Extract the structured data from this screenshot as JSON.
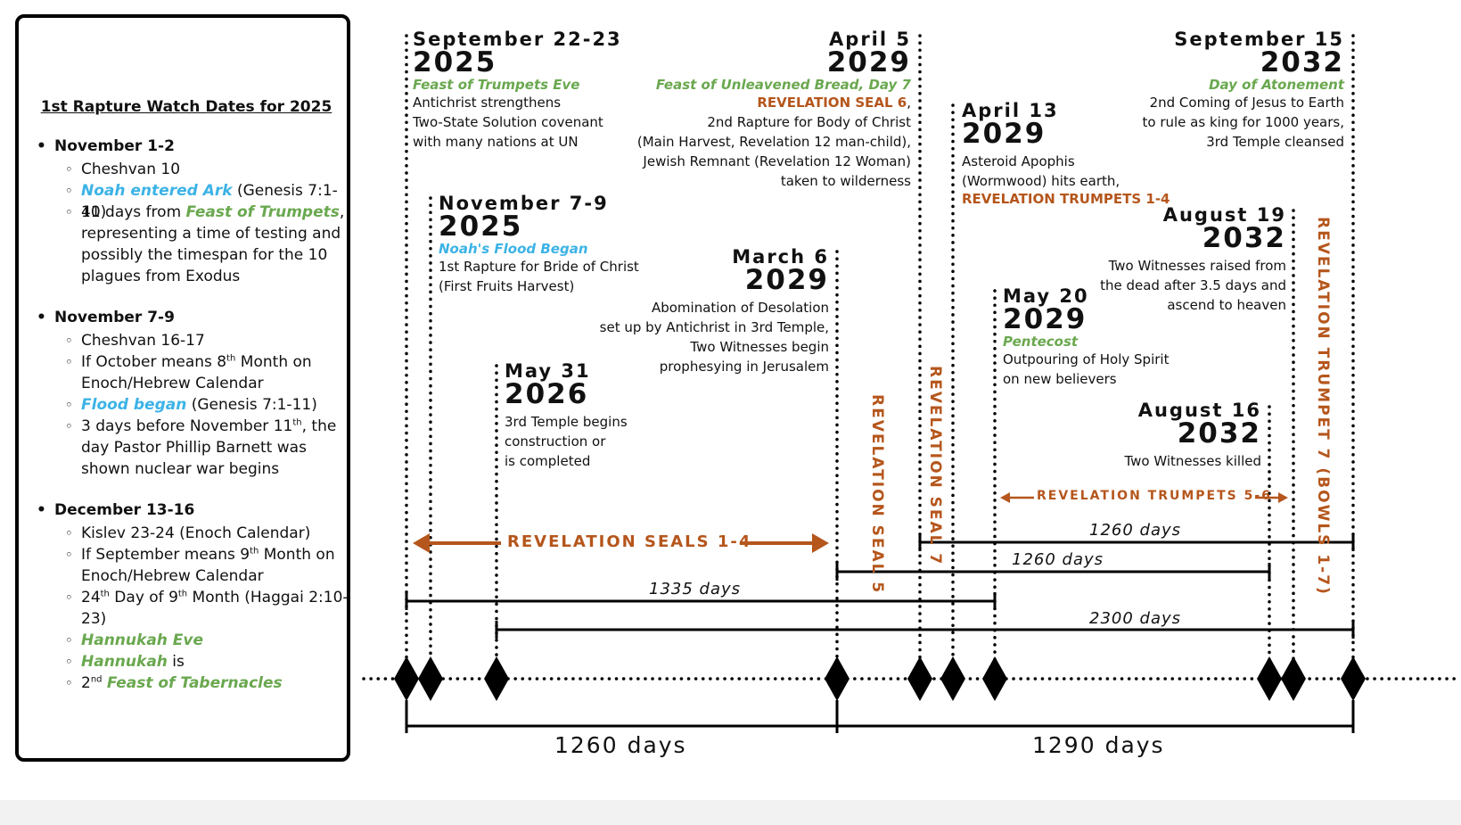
{
  "panel": {
    "title": "1st Rapture Watch Dates for 2025",
    "s1": {
      "head": "November 1-2",
      "i1": "Cheshvan 10",
      "i2a": "Noah entered Ark",
      "i2b": " (Genesis 7:1-11)",
      "i3a": "40 days from ",
      "i3b": "Feast of Trumpets",
      "i3c": ", representing a time of testing and possibly the timespan for the 10 plagues from Exodus"
    },
    "s2": {
      "head": "November 7-9",
      "i1": "Cheshvan 16-17",
      "i2a": "If October means 8",
      "i2sup": "th",
      "i2b": " Month on Enoch/Hebrew Calendar",
      "i3a": "Flood began",
      "i3b": " (Genesis 7:1-11)",
      "i4a": "3 days before November 11",
      "i4sup": "th",
      "i4b": ", the day Pastor Phillip Barnett was shown nuclear war begins"
    },
    "s3": {
      "head": "December 13-16",
      "i1": "Kislev 23-24 (Enoch Calendar)",
      "i2a": "If September means 9",
      "i2sup": "th",
      "i2b": " Month on Enoch/Hebrew Calendar",
      "i3a": "24",
      "i3sup1": "th",
      "i3b": " Day of 9",
      "i3sup2": "th",
      "i3c": " Month (Haggai 2:10-23)",
      "i4": "Hannukah Eve",
      "i5a": "Hannukah",
      "i5b": " is",
      "i6a": "2",
      "i6sup": "nd",
      "i6b": " ",
      "i6c": "Feast of Tabernacles"
    }
  },
  "events": {
    "sep2025": {
      "date": "September 22-23",
      "year": "2025",
      "feast": "Feast of Trumpets Eve",
      "d1": "Antichrist strengthens",
      "d2": "Two-State Solution covenant",
      "d3": "with many nations at UN"
    },
    "nov2025": {
      "date": "November 7-9",
      "year": "2025",
      "feast": "Noah's Flood Began",
      "d1": "1st Rapture for Bride of Christ",
      "d2": "(First Fruits Harvest)"
    },
    "may2026": {
      "date": "May 31",
      "year": "2026",
      "d1": "3rd Temple begins",
      "d2": "construction or",
      "d3": "is completed"
    },
    "mar2029": {
      "date": "March 6",
      "year": "2029",
      "d1": "Abomination of Desolation",
      "d2": "set up by Antichrist in 3rd Temple,",
      "d3": "Two Witnesses begin",
      "d4": "prophesying in Jerusalem"
    },
    "apr5_2029": {
      "date": "April 5",
      "year": "2029",
      "feast": "Feast of Unleavened Bread, Day 7",
      "seal": "REVELATION SEAL 6",
      "sealcomma": ",",
      "d1": "2nd Rapture for Body of Christ",
      "d2": "(Main Harvest, Revelation 12 man-child),",
      "d3": "Jewish Remnant (Revelation 12 Woman)",
      "d4": "taken to wilderness"
    },
    "apr13_2029": {
      "date": "April 13",
      "year": "2029",
      "d1": "Asteroid Apophis",
      "d2": "(Wormwood) hits earth,",
      "trumpets": "REVELATION TRUMPETS 1-4"
    },
    "may20_2029": {
      "date": "May 20",
      "year": "2029",
      "feast": "Pentecost",
      "d1": "Outpouring of Holy Spirit",
      "d2": "on new believers"
    },
    "aug16_2032": {
      "date": "August 16",
      "year": "2032",
      "d1": "Two Witnesses killed"
    },
    "aug19_2032": {
      "date": "August 19",
      "year": "2032",
      "d1": "Two Witnesses raised from",
      "d2": "the dead after 3.5 days and",
      "d3": "ascend to heaven"
    },
    "sep15_2032": {
      "date": "September 15",
      "year": "2032",
      "feast": "Day of Atonement",
      "d1": "2nd Coming of Jesus to Earth",
      "d2": "to rule as king for 1000 years,",
      "d3": "3rd Temple cleansed"
    }
  },
  "labels": {
    "seals14": "REVELATION SEALS 1-4",
    "seal5": "REVELATION SEAL 5",
    "seal7": "REVELATION SEAL 7",
    "trumpets56": "REVELATION TRUMPETS 5-6",
    "trumpet7": "REVELATION TRUMPET 7 (BOWLS 1-7)"
  },
  "durations": {
    "d1260a": "1260 days",
    "d1260b": "1260 days",
    "d1335": "1335 days",
    "d2300": "2300 days",
    "big1260": "1260 days",
    "big1290": "1290 days"
  },
  "colors": {
    "green": "#6aa84f",
    "blue": "#3cb3e6",
    "orange": "#b5561c",
    "black": "#000000"
  }
}
